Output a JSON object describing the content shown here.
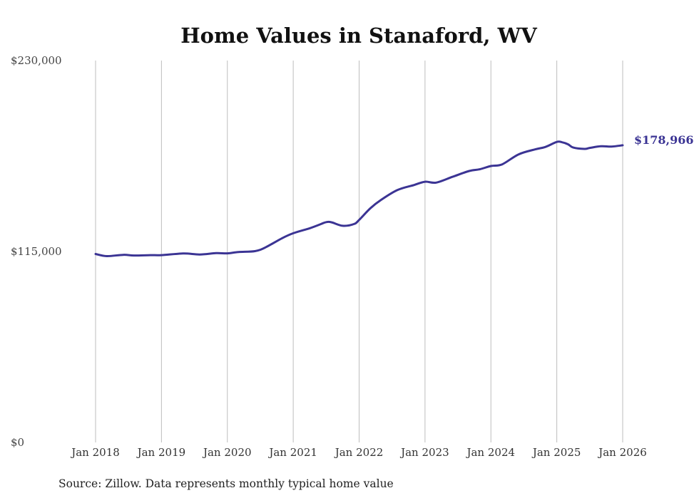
{
  "chart_data": {
    "type": "line",
    "title": "Home Values in Stanaford, WV",
    "xlabel": "",
    "ylabel": "",
    "ylim": [
      0,
      230000
    ],
    "y_ticks": [
      {
        "value": 0,
        "label": "$0"
      },
      {
        "value": 115000,
        "label": "$115,000"
      },
      {
        "value": 230000,
        "label": "$230,000"
      }
    ],
    "x_range": [
      2018.0,
      2026.0
    ],
    "x_ticks": [
      {
        "value": 2018,
        "label": "Jan 2018"
      },
      {
        "value": 2019,
        "label": "Jan 2019"
      },
      {
        "value": 2020,
        "label": "Jan 2020"
      },
      {
        "value": 2021,
        "label": "Jan 2021"
      },
      {
        "value": 2022,
        "label": "Jan 2022"
      },
      {
        "value": 2023,
        "label": "Jan 2023"
      },
      {
        "value": 2024,
        "label": "Jan 2024"
      },
      {
        "value": 2025,
        "label": "Jan 2025"
      },
      {
        "value": 2026,
        "label": "Jan 2026"
      }
    ],
    "grid": "vertical",
    "series": [
      {
        "name": "Typical home value",
        "color": "#3b3494",
        "x": [
          2018.0,
          2018.17,
          2018.42,
          2018.58,
          2018.83,
          2019.0,
          2019.33,
          2019.58,
          2019.83,
          2020.0,
          2020.17,
          2020.42,
          2020.58,
          2020.83,
          2021.0,
          2021.25,
          2021.42,
          2021.5,
          2021.58,
          2021.75,
          2021.92,
          2022.0,
          2022.17,
          2022.33,
          2022.58,
          2022.83,
          2023.0,
          2023.17,
          2023.42,
          2023.67,
          2023.83,
          2024.0,
          2024.17,
          2024.42,
          2024.67,
          2024.83,
          2025.0,
          2025.08,
          2025.17,
          2025.25,
          2025.42,
          2025.5,
          2025.67,
          2025.83,
          2026.0
        ],
        "values": [
          113500,
          112200,
          113000,
          112600,
          112800,
          112800,
          113800,
          113200,
          114000,
          113900,
          114700,
          115200,
          117500,
          123000,
          126000,
          129000,
          131500,
          132700,
          132600,
          130500,
          131500,
          134000,
          141000,
          146000,
          152000,
          155000,
          157000,
          156500,
          160000,
          163500,
          164500,
          166500,
          167500,
          173500,
          176500,
          178000,
          181000,
          180800,
          179600,
          177600,
          176800,
          177400,
          178400,
          178200,
          178966
        ]
      }
    ],
    "end_label": "$178,966",
    "source": "Source: Zillow. Data represents monthly typical home value"
  }
}
